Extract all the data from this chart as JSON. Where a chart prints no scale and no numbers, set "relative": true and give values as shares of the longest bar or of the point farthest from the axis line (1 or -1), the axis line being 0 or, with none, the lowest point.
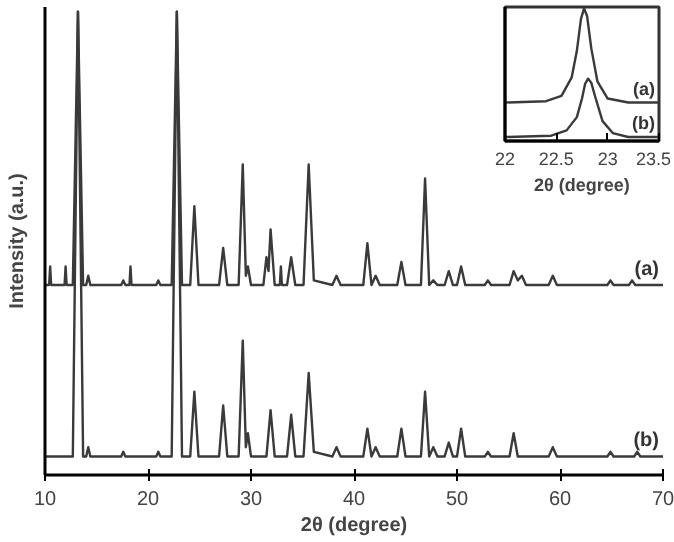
{
  "chart_data": [
    {
      "type": "line",
      "relative": true,
      "xlabel": "2θ (degree)",
      "ylabel": "Intensity (a.u.)",
      "xlim": [
        10,
        70
      ],
      "xticks": [
        10,
        20,
        30,
        40,
        50,
        60,
        70
      ],
      "grid": false,
      "legend": false,
      "marker": "none",
      "line_style": "solid",
      "series": [
        {
          "name": "(a)",
          "color": "#3a3a3a",
          "x": [
            10,
            10.4,
            10.5,
            10.6,
            11.9,
            12,
            12.1,
            12.7,
            13.2,
            13.7,
            14,
            14.2,
            14.4,
            17.4,
            17.6,
            17.8,
            18.2,
            18.3,
            18.4,
            20.8,
            21,
            21.2,
            22.3,
            22.8,
            23.3,
            24.1,
            24.5,
            24.9,
            26.9,
            27.3,
            27.7,
            28.8,
            29.2,
            29.5,
            29.7,
            30,
            31.2,
            31.5,
            31.7,
            31.9,
            32.3,
            32.8,
            32.9,
            33,
            33.5,
            33.9,
            34.3,
            35.1,
            35.6,
            36.1,
            37.9,
            38.3,
            38.7,
            40.9,
            41.3,
            41.7,
            42.1,
            42.5,
            44.2,
            44.6,
            45,
            46.5,
            46.9,
            47.3,
            47.7,
            48.1,
            48.8,
            49.2,
            49.6,
            50,
            50.4,
            50.8,
            52.7,
            53,
            53.3,
            55.1,
            55.5,
            55.9,
            56.3,
            56.7,
            58.9,
            59.3,
            59.7,
            64.6,
            64.9,
            65.2,
            66.7,
            67,
            67.3,
            70
          ],
          "values": [
            0.41,
            0.41,
            0.45,
            0.41,
            0.41,
            0.45,
            0.41,
            0.41,
            1.0,
            0.41,
            0.41,
            0.43,
            0.41,
            0.41,
            0.42,
            0.41,
            0.41,
            0.45,
            0.41,
            0.41,
            0.42,
            0.41,
            0.41,
            1.0,
            0.41,
            0.41,
            0.58,
            0.41,
            0.41,
            0.49,
            0.41,
            0.41,
            0.67,
            0.43,
            0.45,
            0.41,
            0.41,
            0.47,
            0.44,
            0.53,
            0.41,
            0.41,
            0.45,
            0.41,
            0.41,
            0.47,
            0.41,
            0.41,
            0.67,
            0.42,
            0.41,
            0.43,
            0.41,
            0.41,
            0.5,
            0.41,
            0.43,
            0.41,
            0.41,
            0.46,
            0.41,
            0.41,
            0.64,
            0.41,
            0.42,
            0.41,
            0.41,
            0.44,
            0.41,
            0.41,
            0.45,
            0.41,
            0.41,
            0.42,
            0.41,
            0.41,
            0.44,
            0.42,
            0.43,
            0.41,
            0.41,
            0.43,
            0.41,
            0.41,
            0.42,
            0.41,
            0.41,
            0.42,
            0.41,
            0.41
          ]
        },
        {
          "name": "(b)",
          "color": "#3a3a3a",
          "x": [
            10,
            12.7,
            13.2,
            13.7,
            14,
            14.2,
            14.4,
            17.4,
            17.6,
            17.8,
            20.8,
            21,
            21.2,
            22.3,
            22.8,
            23.3,
            24.1,
            24.5,
            24.9,
            26.9,
            27.3,
            27.7,
            28.8,
            29.2,
            29.5,
            29.7,
            30,
            31.5,
            31.9,
            32.3,
            33.5,
            33.9,
            34.3,
            35.1,
            35.6,
            36.1,
            37.9,
            38.3,
            38.7,
            40.9,
            41.3,
            41.7,
            42.1,
            42.5,
            44.2,
            44.6,
            45,
            46.5,
            46.9,
            47.3,
            47.7,
            48.1,
            48.8,
            49.2,
            49.6,
            50,
            50.4,
            50.8,
            52.7,
            53,
            53.3,
            55.1,
            55.5,
            55.9,
            58.9,
            59.3,
            59.7,
            64.6,
            64.9,
            65.2,
            67.2,
            67.5,
            67.8,
            70
          ],
          "values": [
            0.04,
            0.04,
            1.0,
            0.04,
            0.04,
            0.06,
            0.04,
            0.04,
            0.05,
            0.04,
            0.04,
            0.05,
            0.04,
            0.04,
            1.0,
            0.04,
            0.04,
            0.18,
            0.04,
            0.04,
            0.15,
            0.04,
            0.04,
            0.29,
            0.06,
            0.09,
            0.04,
            0.04,
            0.14,
            0.04,
            0.04,
            0.13,
            0.04,
            0.04,
            0.22,
            0.05,
            0.04,
            0.06,
            0.04,
            0.04,
            0.1,
            0.04,
            0.06,
            0.04,
            0.04,
            0.1,
            0.04,
            0.04,
            0.18,
            0.04,
            0.06,
            0.04,
            0.04,
            0.07,
            0.04,
            0.04,
            0.1,
            0.04,
            0.04,
            0.05,
            0.04,
            0.04,
            0.09,
            0.04,
            0.04,
            0.06,
            0.04,
            0.04,
            0.05,
            0.04,
            0.04,
            0.05,
            0.04,
            0.04
          ]
        }
      ]
    },
    {
      "type": "line",
      "relative": true,
      "xlabel": "2θ (degree)",
      "xlim": [
        22,
        23.5
      ],
      "xticks": [
        22,
        22.5,
        23,
        23.5
      ],
      "grid": false,
      "legend": false,
      "marker": "none",
      "line_style": "solid",
      "series": [
        {
          "name": "(a)",
          "color": "#3a3a3a",
          "x": [
            22,
            22.4,
            22.55,
            22.65,
            22.7,
            22.74,
            22.77,
            22.8,
            22.84,
            22.9,
            23.0,
            23.2,
            23.5
          ],
          "values": [
            0.29,
            0.3,
            0.34,
            0.48,
            0.68,
            0.92,
            1.0,
            0.94,
            0.7,
            0.45,
            0.32,
            0.29,
            0.29
          ]
        },
        {
          "name": "(b)",
          "color": "#3a3a3a",
          "x": [
            22,
            22.45,
            22.6,
            22.7,
            22.75,
            22.78,
            22.81,
            22.84,
            22.88,
            22.95,
            23.05,
            23.2,
            23.5
          ],
          "values": [
            0.03,
            0.04,
            0.08,
            0.18,
            0.32,
            0.43,
            0.47,
            0.44,
            0.33,
            0.15,
            0.06,
            0.03,
            0.03
          ]
        }
      ]
    }
  ]
}
